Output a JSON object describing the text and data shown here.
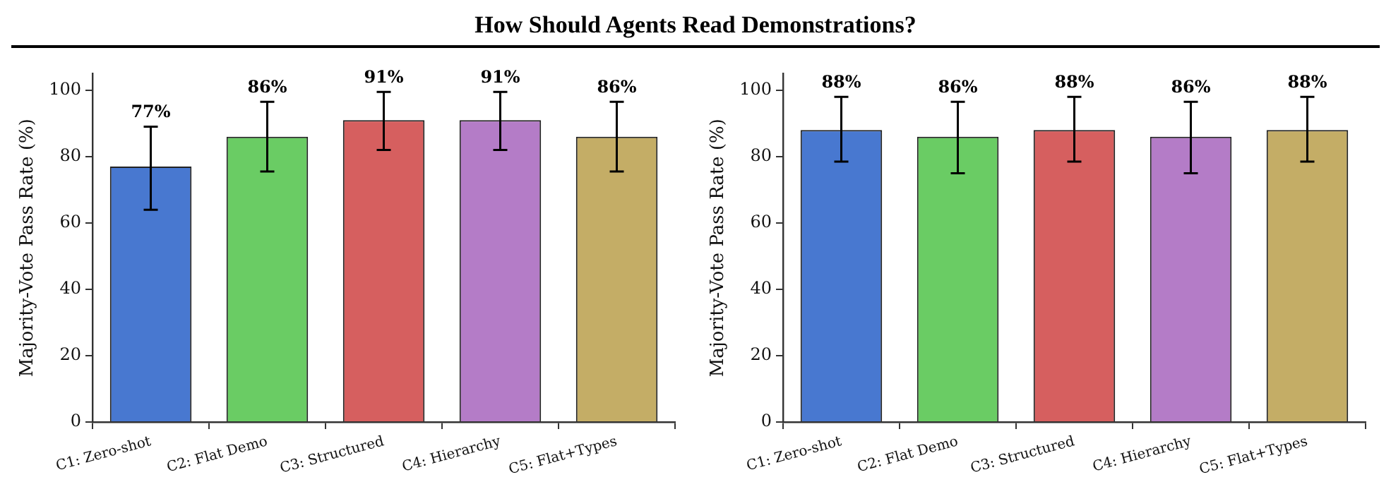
{
  "chart_data": [
    {
      "type": "bar",
      "title": "How Should Agents Read Demonstrations?",
      "ylabel": "Majority-Vote Pass Rate (%)",
      "categories": [
        "C1: Zero-shot",
        "C2: Flat Demo",
        "C3: Structured",
        "C4: Hierarchy",
        "C5: Flat+Types"
      ],
      "values": [
        77,
        86,
        91,
        91,
        86
      ],
      "colors": [
        "#4878d0",
        "#6acc64",
        "#d65f5f",
        "#b47cc7",
        "#c4ad66"
      ],
      "errors": [
        [
          64,
          89
        ],
        [
          75.5,
          96.5
        ],
        [
          82,
          99.5
        ],
        [
          82,
          99.5
        ],
        [
          75.5,
          96.5
        ]
      ],
      "value_labels": [
        "77%",
        "86%",
        "91%",
        "91%",
        "86%"
      ],
      "ylim": [
        0,
        105
      ],
      "yticks": [
        0,
        20,
        40,
        60,
        80,
        100
      ],
      "grid": false,
      "legend": false
    },
    {
      "type": "bar",
      "ylabel": "Majority-Vote Pass Rate (%)",
      "categories": [
        "C1: Zero-shot",
        "C2: Flat Demo",
        "C3: Structured",
        "C4: Hierarchy",
        "C5: Flat+Types"
      ],
      "values": [
        88,
        86,
        88,
        86,
        88
      ],
      "colors": [
        "#4878d0",
        "#6acc64",
        "#d65f5f",
        "#b47cc7",
        "#c4ad66"
      ],
      "errors": [
        [
          78.5,
          98
        ],
        [
          75,
          96.5
        ],
        [
          78.5,
          98
        ],
        [
          75,
          96.5
        ],
        [
          78.5,
          98
        ]
      ],
      "value_labels": [
        "88%",
        "86%",
        "88%",
        "86%",
        "88%"
      ],
      "ylim": [
        0,
        105
      ],
      "yticks": [
        0,
        20,
        40,
        60,
        80,
        100
      ],
      "grid": false,
      "legend": false
    }
  ]
}
